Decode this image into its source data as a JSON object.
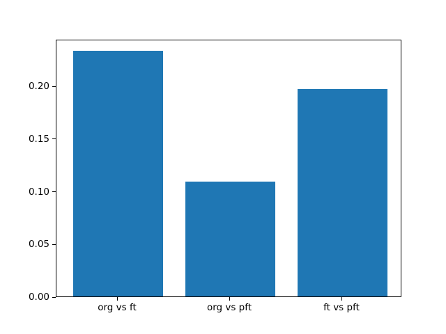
{
  "colors": {
    "bar": "#1f77b4",
    "background": "#ffffff",
    "spine": "#000000",
    "text": "#000000"
  },
  "chart_data": {
    "type": "bar",
    "categories": [
      "org vs ft",
      "org vs pft",
      "ft vs pft"
    ],
    "values": [
      0.233,
      0.109,
      0.197
    ],
    "title": "",
    "xlabel": "",
    "ylabel": "",
    "ylim": [
      0,
      0.2444
    ],
    "yticks": [
      0.0,
      0.05,
      0.1,
      0.15,
      0.2
    ],
    "ytick_labels": [
      "0.00",
      "0.05",
      "0.10",
      "0.15",
      "0.20"
    ],
    "grid": false,
    "legend": null,
    "bar_color": "#1f77b4"
  }
}
